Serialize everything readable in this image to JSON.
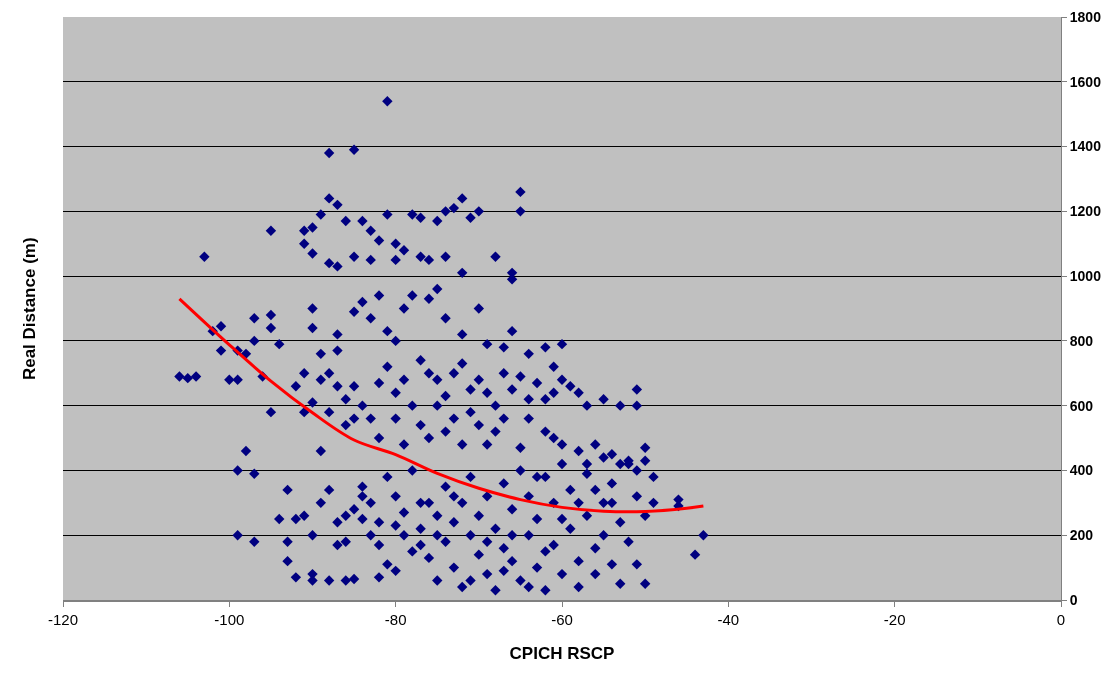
{
  "chart_data": {
    "type": "scatter",
    "xlabel": "CPICH RSCP",
    "ylabel": "Real Distance (m)",
    "xlim": [
      -120,
      0
    ],
    "xticks": [
      -120,
      -100,
      -80,
      -60,
      -40,
      -20,
      0
    ],
    "ylim": [
      0,
      1800
    ],
    "yticks": [
      0,
      200,
      400,
      600,
      800,
      1000,
      1200,
      1400,
      1600,
      1800
    ],
    "grid": "y",
    "marker": "diamond",
    "series": [
      {
        "type": "scatter",
        "color": "#000080",
        "x": [
          -106,
          -105,
          -104,
          -103,
          -102,
          -101,
          -101,
          -100,
          -99,
          -99,
          -98,
          -97,
          -97,
          -96,
          -99,
          -99,
          -98,
          -97,
          -97,
          -95,
          -95,
          -95,
          -95,
          -94,
          -94,
          -93,
          -93,
          -91,
          -91,
          -90,
          -89,
          -88,
          -88,
          -87,
          -86,
          -85,
          -84,
          -83,
          -82,
          -81,
          -81,
          -80,
          -79,
          -78,
          -77,
          -75,
          -74,
          -73,
          -72,
          -71,
          -70,
          -65,
          -65,
          -90,
          -88,
          -87,
          -85,
          -83,
          -80,
          -77,
          -76,
          -74,
          -72,
          -68,
          -66,
          -66,
          -91,
          -90,
          -90,
          -89,
          -88,
          -87,
          -87,
          -85,
          -84,
          -83,
          -82,
          -81,
          -80,
          -79,
          -78,
          -76,
          -75,
          -74,
          -72,
          -70,
          -69,
          -67,
          -66,
          -64,
          -62,
          -61,
          -60,
          -92,
          -90,
          -89,
          -87,
          -86,
          -85,
          -84,
          -82,
          -81,
          -80,
          -79,
          -78,
          -77,
          -76,
          -75,
          -74,
          -73,
          -72,
          -71,
          -70,
          -69,
          -68,
          -67,
          -66,
          -65,
          -64,
          -63,
          -62,
          -61,
          -60,
          -59,
          -58,
          -57,
          -55,
          -53,
          -51,
          -51,
          -91,
          -89,
          -88,
          -86,
          -85,
          -83,
          -82,
          -80,
          -79,
          -77,
          -76,
          -75,
          -74,
          -73,
          -72,
          -71,
          -70,
          -69,
          -68,
          -67,
          -65,
          -64,
          -62,
          -61,
          -60,
          -58,
          -57,
          -56,
          -55,
          -54,
          -53,
          -52,
          -51,
          -50,
          -50,
          -92,
          -91,
          -90,
          -89,
          -88,
          -87,
          -86,
          -86,
          -85,
          -84,
          -84,
          -83,
          -82,
          -81,
          -80,
          -80,
          -79,
          -78,
          -78,
          -77,
          -76,
          -76,
          -75,
          -75,
          -74,
          -74,
          -73,
          -73,
          -72,
          -72,
          -71,
          -71,
          -70,
          -70,
          -69,
          -69,
          -68,
          -68,
          -67,
          -67,
          -66,
          -66,
          -65,
          -65,
          -64,
          -64,
          -63,
          -63,
          -62,
          -62,
          -61,
          -61,
          -60,
          -60,
          -59,
          -59,
          -58,
          -58,
          -57,
          -57,
          -56,
          -56,
          -55,
          -55,
          -54,
          -54,
          -53,
          -53,
          -52,
          -52,
          -51,
          -51,
          -50,
          -50,
          -49,
          -49,
          -46,
          -46,
          -44,
          -43,
          -92,
          -90,
          -90,
          -88,
          -86,
          -85,
          -82,
          -81,
          -79,
          -77,
          -93,
          -87,
          -82,
          -80,
          -71,
          -66,
          -63,
          -58,
          -56,
          -54,
          -60,
          -62,
          -64,
          -67,
          -69,
          -73,
          -75,
          -77,
          -83,
          -84
        ],
        "values": [
          690,
          685,
          690,
          1060,
          830,
          770,
          845,
          680,
          680,
          770,
          760,
          800,
          870,
          690,
          400,
          200,
          460,
          390,
          180,
          880,
          840,
          1140,
          580,
          790,
          250,
          340,
          180,
          1140,
          1100,
          1150,
          1190,
          1380,
          1240,
          1220,
          1170,
          1390,
          1170,
          1140,
          1110,
          1190,
          1540,
          1100,
          1080,
          1190,
          1180,
          1170,
          1200,
          1210,
          1240,
          1180,
          1200,
          1260,
          1200,
          1070,
          1040,
          1030,
          1060,
          1050,
          1050,
          1060,
          1050,
          1060,
          1010,
          1060,
          1010,
          990,
          700,
          900,
          840,
          760,
          700,
          820,
          770,
          890,
          920,
          870,
          940,
          830,
          800,
          900,
          940,
          930,
          960,
          870,
          820,
          900,
          790,
          780,
          830,
          760,
          780,
          720,
          790,
          660,
          610,
          680,
          660,
          620,
          660,
          600,
          670,
          720,
          640,
          680,
          600,
          740,
          700,
          680,
          630,
          700,
          730,
          650,
          680,
          640,
          600,
          700,
          650,
          690,
          620,
          670,
          620,
          640,
          680,
          660,
          640,
          600,
          620,
          600,
          650,
          600,
          580,
          460,
          580,
          540,
          560,
          560,
          500,
          560,
          480,
          540,
          500,
          600,
          520,
          560,
          480,
          580,
          540,
          480,
          520,
          560,
          470,
          560,
          520,
          500,
          480,
          460,
          420,
          480,
          440,
          450,
          420,
          430,
          400,
          470,
          430,
          250,
          260,
          200,
          300,
          340,
          240,
          260,
          180,
          280,
          350,
          250,
          300,
          240,
          380,
          230,
          320,
          270,
          150,
          400,
          220,
          300,
          130,
          260,
          60,
          350,
          180,
          240,
          100,
          300,
          40,
          200,
          380,
          140,
          260,
          80,
          320,
          220,
          30,
          360,
          160,
          120,
          280,
          60,
          400,
          200,
          320,
          100,
          250,
          30,
          380,
          170,
          300,
          80,
          420,
          220,
          340,
          120,
          40,
          260,
          390,
          160,
          80,
          300,
          200,
          110,
          360,
          240,
          50,
          180,
          420,
          320,
          110,
          260,
          50,
          380,
          300,
          310,
          290,
          140,
          200,
          70,
          60,
          80,
          60,
          60,
          65,
          70,
          110,
          200,
          170,
          120,
          170,
          170,
          90,
          60,
          200,
          380,
          300,
          340,
          300,
          250,
          150,
          40,
          90,
          180,
          320,
          200,
          300,
          200,
          320
        ]
      },
      {
        "type": "line",
        "color": "#ff0000",
        "marker": "none",
        "x": [
          -106,
          -100,
          -95,
          -90,
          -85,
          -80,
          -75,
          -70,
          -65,
          -60,
          -55,
          -50,
          -45,
          -43
        ],
        "values": [
          930,
          788,
          676,
          578,
          494,
          449,
          391,
          345,
          310,
          286,
          274,
          273,
          283,
          290
        ]
      }
    ]
  }
}
